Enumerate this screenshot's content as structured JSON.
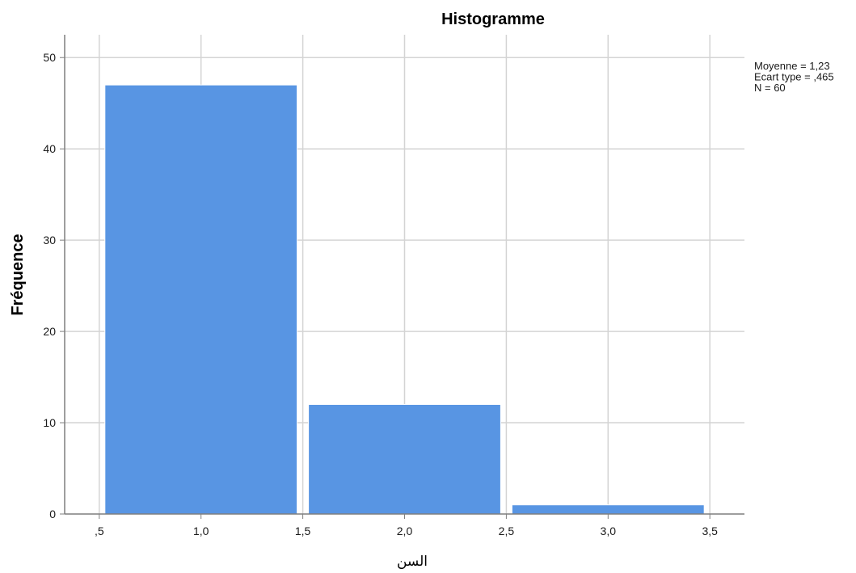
{
  "chart_data": {
    "type": "bar",
    "title": "Histogramme",
    "xlabel": "السن",
    "ylabel": "Fréquence",
    "bins": [
      {
        "start": 0.5,
        "end": 1.5,
        "value": 47
      },
      {
        "start": 1.5,
        "end": 2.5,
        "value": 12
      },
      {
        "start": 2.5,
        "end": 3.5,
        "value": 1
      }
    ],
    "xlim": [
      0.33,
      3.67
    ],
    "ylim": [
      0,
      52.5
    ],
    "x_ticks": [
      0.5,
      1.0,
      1.5,
      2.0,
      2.5,
      3.0,
      3.5
    ],
    "x_tick_labels": [
      ",5",
      "1,0",
      "1,5",
      "2,0",
      "2,5",
      "3,0",
      "3,5"
    ],
    "y_ticks": [
      0,
      10,
      20,
      30,
      40,
      50
    ],
    "y_tick_labels": [
      "0",
      "10",
      "20",
      "30",
      "40",
      "50"
    ],
    "grid": true,
    "bar_color": "#5895e3",
    "grid_color": "#d4d4d4",
    "stats": [
      "Moyenne = 1,23",
      "Ecart type = ,465",
      "N = 60"
    ]
  }
}
